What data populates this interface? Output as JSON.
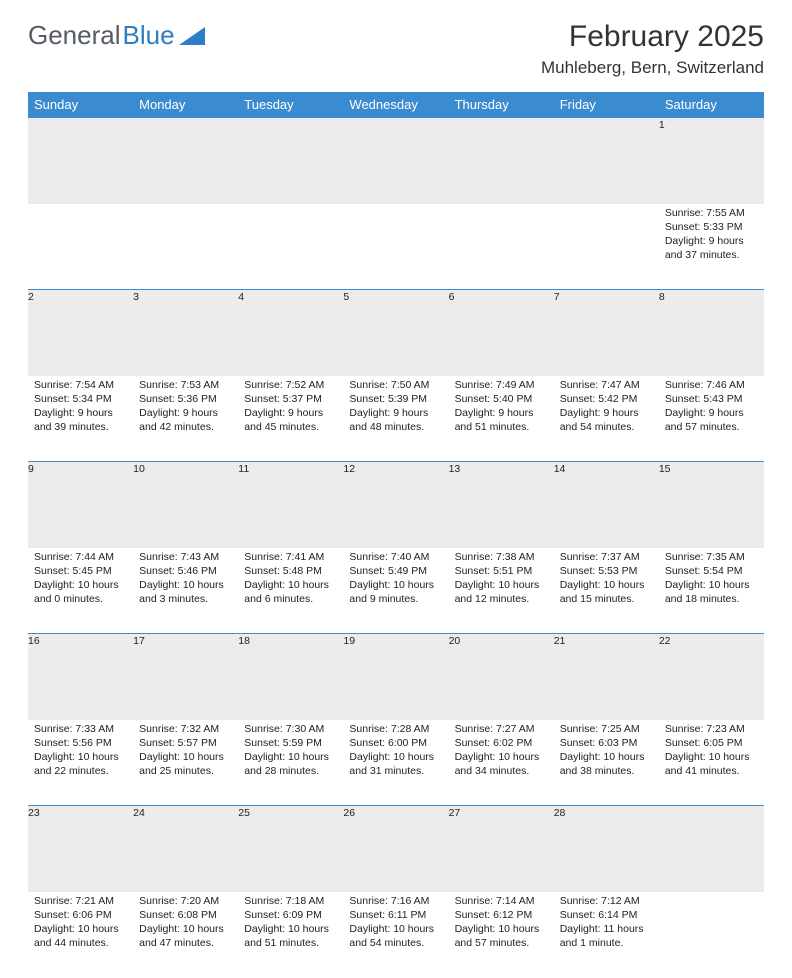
{
  "logo": {
    "text1": "General",
    "text2": "Blue",
    "triangle_color": "#2f7dc4"
  },
  "title": "February 2025",
  "location": "Muhleberg, Bern, Switzerland",
  "colors": {
    "header_bg": "#3b8bd0",
    "header_text": "#ffffff",
    "daynum_bg": "#ececec",
    "border": "#3b8bd0",
    "text": "#222222"
  },
  "day_headers": [
    "Sunday",
    "Monday",
    "Tuesday",
    "Wednesday",
    "Thursday",
    "Friday",
    "Saturday"
  ],
  "weeks": [
    [
      null,
      null,
      null,
      null,
      null,
      null,
      {
        "n": "1",
        "sr": "Sunrise: 7:55 AM",
        "ss": "Sunset: 5:33 PM",
        "dl": "Daylight: 9 hours and 37 minutes."
      }
    ],
    [
      {
        "n": "2",
        "sr": "Sunrise: 7:54 AM",
        "ss": "Sunset: 5:34 PM",
        "dl": "Daylight: 9 hours and 39 minutes."
      },
      {
        "n": "3",
        "sr": "Sunrise: 7:53 AM",
        "ss": "Sunset: 5:36 PM",
        "dl": "Daylight: 9 hours and 42 minutes."
      },
      {
        "n": "4",
        "sr": "Sunrise: 7:52 AM",
        "ss": "Sunset: 5:37 PM",
        "dl": "Daylight: 9 hours and 45 minutes."
      },
      {
        "n": "5",
        "sr": "Sunrise: 7:50 AM",
        "ss": "Sunset: 5:39 PM",
        "dl": "Daylight: 9 hours and 48 minutes."
      },
      {
        "n": "6",
        "sr": "Sunrise: 7:49 AM",
        "ss": "Sunset: 5:40 PM",
        "dl": "Daylight: 9 hours and 51 minutes."
      },
      {
        "n": "7",
        "sr": "Sunrise: 7:47 AM",
        "ss": "Sunset: 5:42 PM",
        "dl": "Daylight: 9 hours and 54 minutes."
      },
      {
        "n": "8",
        "sr": "Sunrise: 7:46 AM",
        "ss": "Sunset: 5:43 PM",
        "dl": "Daylight: 9 hours and 57 minutes."
      }
    ],
    [
      {
        "n": "9",
        "sr": "Sunrise: 7:44 AM",
        "ss": "Sunset: 5:45 PM",
        "dl": "Daylight: 10 hours and 0 minutes."
      },
      {
        "n": "10",
        "sr": "Sunrise: 7:43 AM",
        "ss": "Sunset: 5:46 PM",
        "dl": "Daylight: 10 hours and 3 minutes."
      },
      {
        "n": "11",
        "sr": "Sunrise: 7:41 AM",
        "ss": "Sunset: 5:48 PM",
        "dl": "Daylight: 10 hours and 6 minutes."
      },
      {
        "n": "12",
        "sr": "Sunrise: 7:40 AM",
        "ss": "Sunset: 5:49 PM",
        "dl": "Daylight: 10 hours and 9 minutes."
      },
      {
        "n": "13",
        "sr": "Sunrise: 7:38 AM",
        "ss": "Sunset: 5:51 PM",
        "dl": "Daylight: 10 hours and 12 minutes."
      },
      {
        "n": "14",
        "sr": "Sunrise: 7:37 AM",
        "ss": "Sunset: 5:53 PM",
        "dl": "Daylight: 10 hours and 15 minutes."
      },
      {
        "n": "15",
        "sr": "Sunrise: 7:35 AM",
        "ss": "Sunset: 5:54 PM",
        "dl": "Daylight: 10 hours and 18 minutes."
      }
    ],
    [
      {
        "n": "16",
        "sr": "Sunrise: 7:33 AM",
        "ss": "Sunset: 5:56 PM",
        "dl": "Daylight: 10 hours and 22 minutes."
      },
      {
        "n": "17",
        "sr": "Sunrise: 7:32 AM",
        "ss": "Sunset: 5:57 PM",
        "dl": "Daylight: 10 hours and 25 minutes."
      },
      {
        "n": "18",
        "sr": "Sunrise: 7:30 AM",
        "ss": "Sunset: 5:59 PM",
        "dl": "Daylight: 10 hours and 28 minutes."
      },
      {
        "n": "19",
        "sr": "Sunrise: 7:28 AM",
        "ss": "Sunset: 6:00 PM",
        "dl": "Daylight: 10 hours and 31 minutes."
      },
      {
        "n": "20",
        "sr": "Sunrise: 7:27 AM",
        "ss": "Sunset: 6:02 PM",
        "dl": "Daylight: 10 hours and 34 minutes."
      },
      {
        "n": "21",
        "sr": "Sunrise: 7:25 AM",
        "ss": "Sunset: 6:03 PM",
        "dl": "Daylight: 10 hours and 38 minutes."
      },
      {
        "n": "22",
        "sr": "Sunrise: 7:23 AM",
        "ss": "Sunset: 6:05 PM",
        "dl": "Daylight: 10 hours and 41 minutes."
      }
    ],
    [
      {
        "n": "23",
        "sr": "Sunrise: 7:21 AM",
        "ss": "Sunset: 6:06 PM",
        "dl": "Daylight: 10 hours and 44 minutes."
      },
      {
        "n": "24",
        "sr": "Sunrise: 7:20 AM",
        "ss": "Sunset: 6:08 PM",
        "dl": "Daylight: 10 hours and 47 minutes."
      },
      {
        "n": "25",
        "sr": "Sunrise: 7:18 AM",
        "ss": "Sunset: 6:09 PM",
        "dl": "Daylight: 10 hours and 51 minutes."
      },
      {
        "n": "26",
        "sr": "Sunrise: 7:16 AM",
        "ss": "Sunset: 6:11 PM",
        "dl": "Daylight: 10 hours and 54 minutes."
      },
      {
        "n": "27",
        "sr": "Sunrise: 7:14 AM",
        "ss": "Sunset: 6:12 PM",
        "dl": "Daylight: 10 hours and 57 minutes."
      },
      {
        "n": "28",
        "sr": "Sunrise: 7:12 AM",
        "ss": "Sunset: 6:14 PM",
        "dl": "Daylight: 11 hours and 1 minute."
      },
      null
    ]
  ]
}
